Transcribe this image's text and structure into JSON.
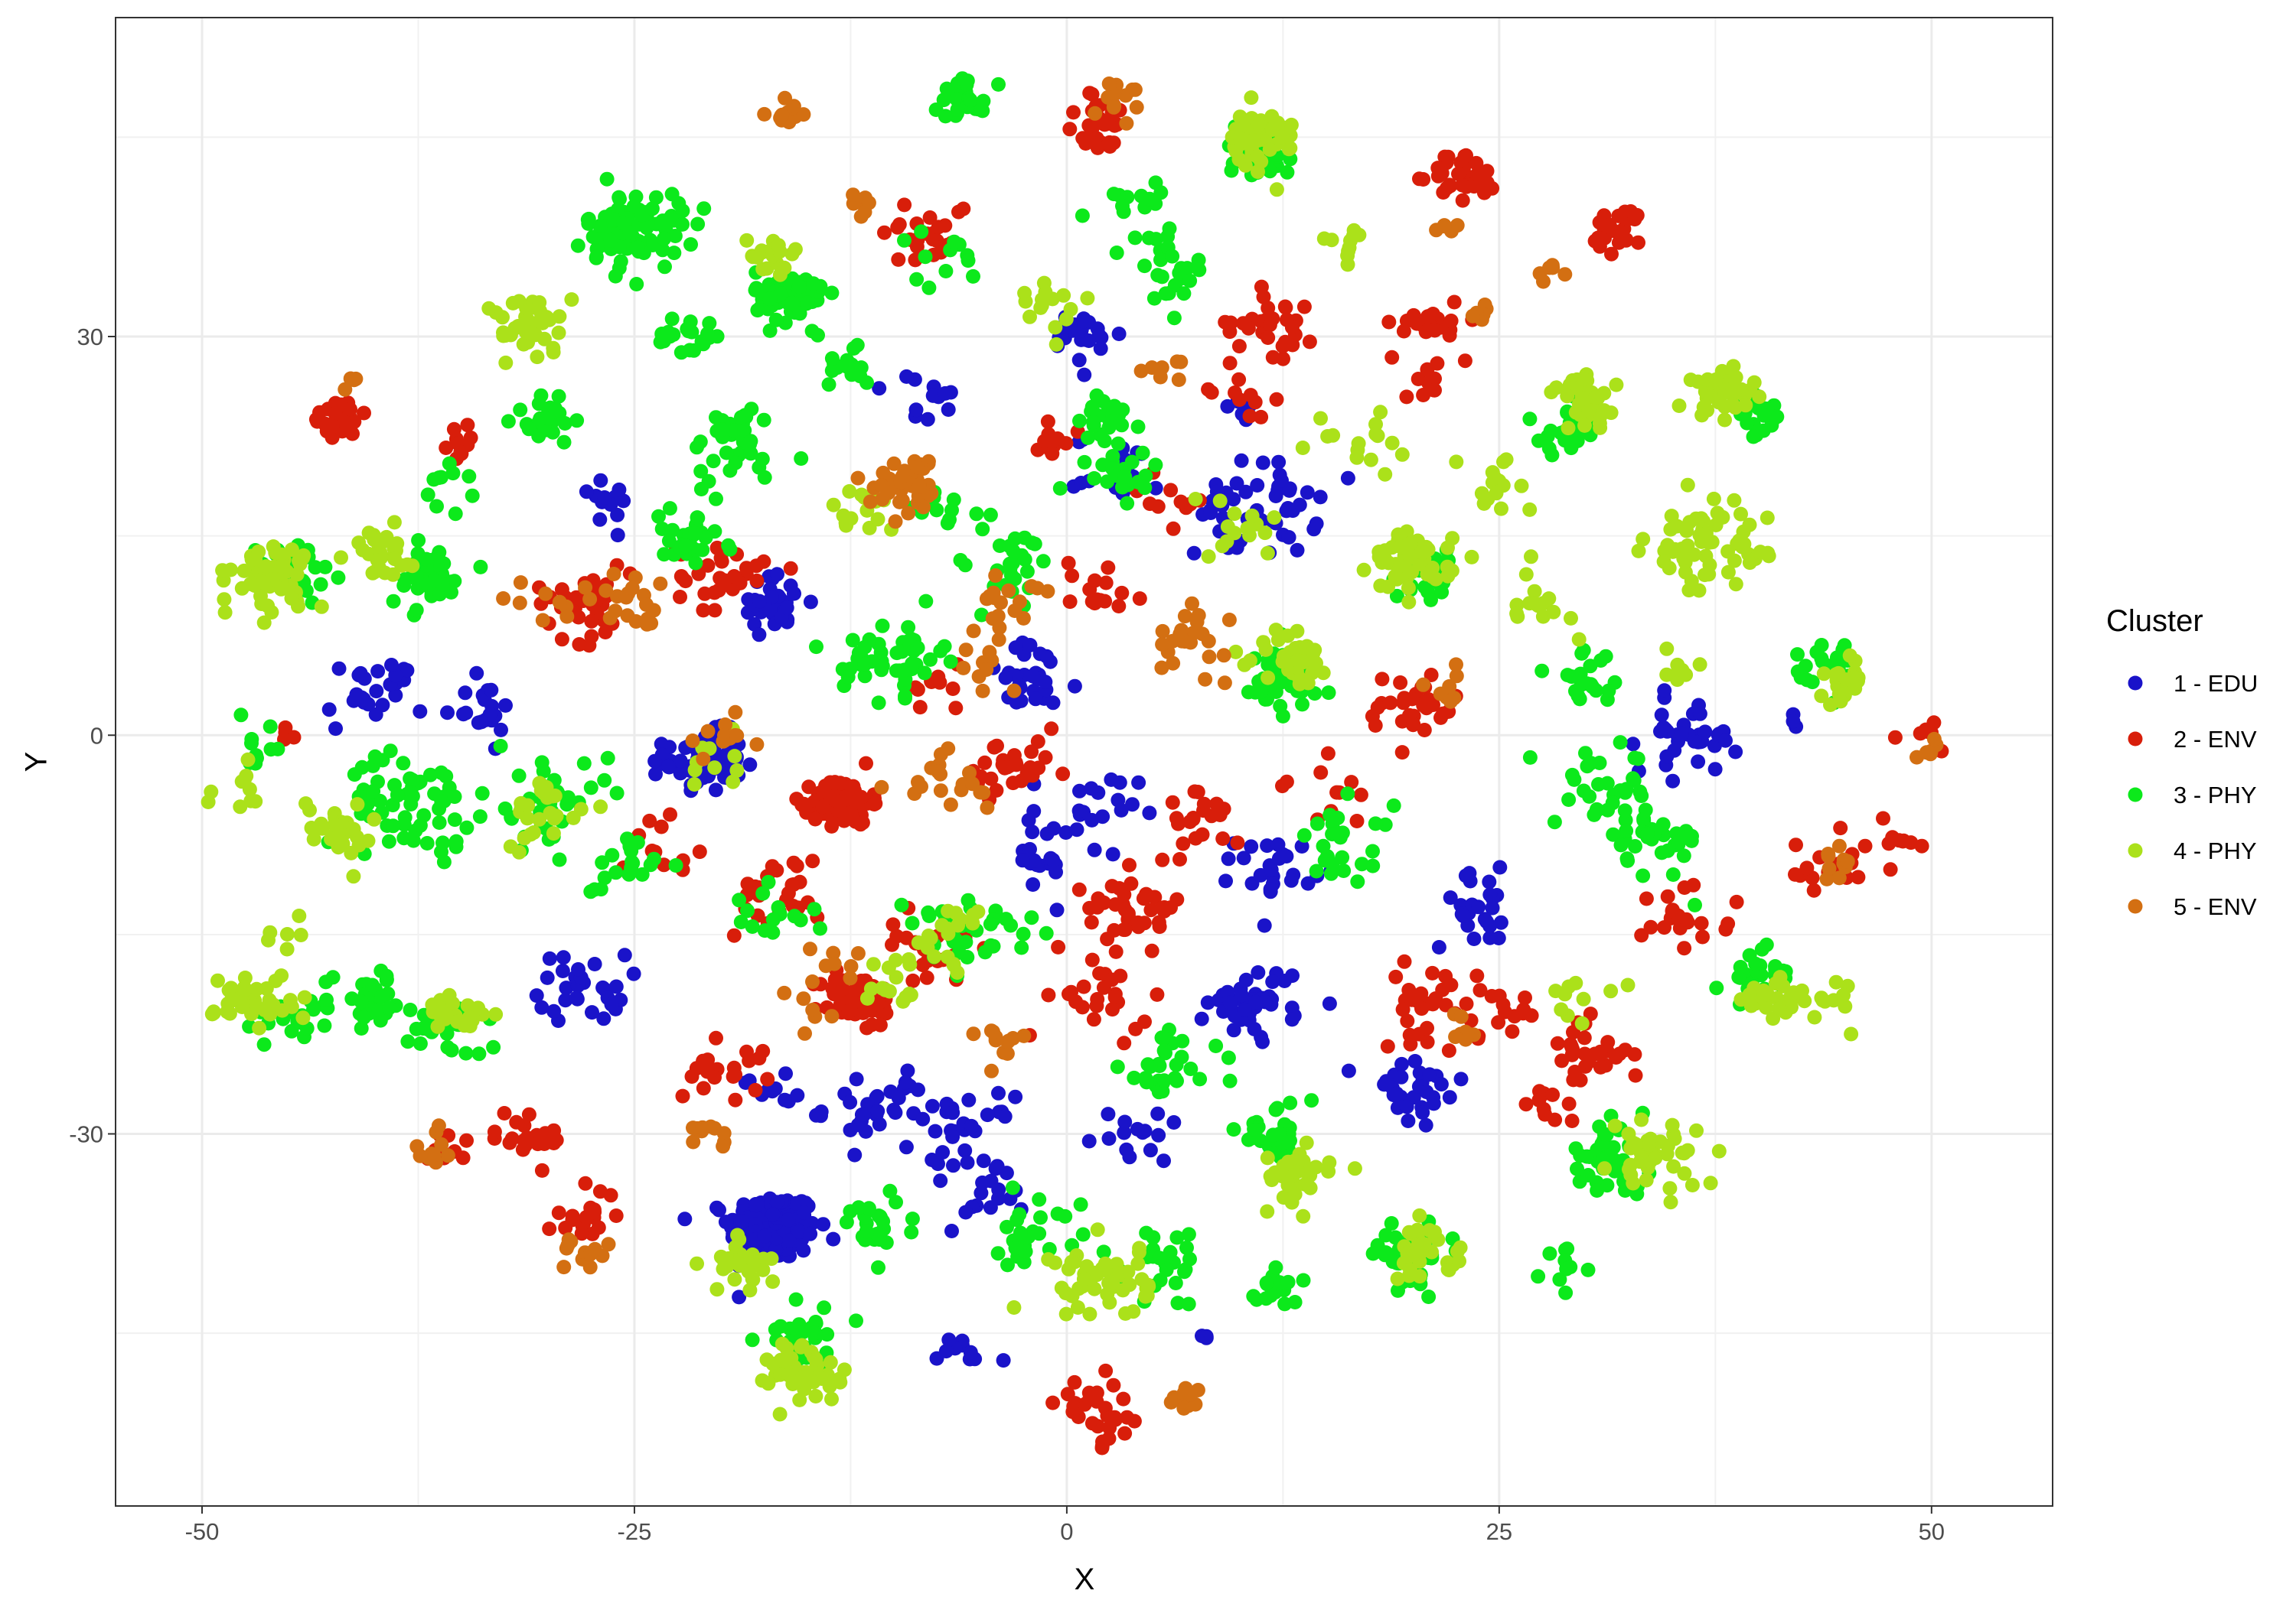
{
  "chart_data": {
    "type": "scatter",
    "title": "",
    "xlabel": "X",
    "ylabel": "Y",
    "xlim": [
      -55,
      57
    ],
    "ylim": [
      -58,
      54
    ],
    "x_ticks": [
      -50,
      -25,
      0,
      25,
      50
    ],
    "x_tick_labels": [
      "-50",
      "-25",
      "0",
      "25",
      "50"
    ],
    "y_ticks": [
      -30,
      0,
      30
    ],
    "y_tick_labels": [
      "-30",
      "0",
      "30"
    ],
    "grid": true,
    "legend": {
      "title": "Cluster",
      "placement": "right"
    },
    "series": [
      {
        "name": "1 - EDU",
        "color": "#1a13c9",
        "clusters": [
          [
            -17,
            -37,
            1.8,
            220
          ],
          [
            -21,
            -2,
            1.6,
            70
          ],
          [
            -17,
            10,
            1.5,
            35
          ],
          [
            -28,
            -19,
            1.8,
            30
          ],
          [
            -40,
            3,
            2.0,
            25
          ],
          [
            -34,
            2,
            1.5,
            20
          ],
          [
            -11,
            -28,
            2.2,
            30
          ],
          [
            -6,
            -30,
            2.0,
            30
          ],
          [
            -2,
            4,
            2.0,
            30
          ],
          [
            1,
            30,
            1.5,
            25
          ],
          [
            3,
            20,
            1.8,
            20
          ],
          [
            11,
            17,
            2.5,
            50
          ],
          [
            11,
            -20,
            2.0,
            40
          ],
          [
            12,
            -10,
            1.6,
            25
          ],
          [
            1,
            -6,
            2.2,
            25
          ],
          [
            -2,
            -10,
            1.5,
            15
          ],
          [
            20,
            -27,
            2.2,
            30
          ],
          [
            24,
            -13,
            2.0,
            25
          ],
          [
            36,
            0,
            2.0,
            35
          ],
          [
            -5,
            -35,
            1.5,
            15
          ],
          [
            -6,
            -47,
            1.5,
            10
          ],
          [
            4,
            -30,
            1.8,
            15
          ],
          [
            -8,
            25,
            1.6,
            12
          ],
          [
            10,
            25,
            1.0,
            8
          ],
          [
            -27,
            18,
            1.6,
            12
          ],
          [
            8,
            -45,
            0.4,
            3
          ],
          [
            -17,
            -27,
            1.2,
            10
          ],
          [
            42,
            1,
            0.5,
            3
          ]
        ]
      },
      {
        "name": "2 - ENV",
        "color": "#d81e0a",
        "clusters": [
          [
            -13,
            -5,
            1.2,
            120
          ],
          [
            -12,
            -20,
            1.6,
            50
          ],
          [
            2,
            46,
            1.6,
            30
          ],
          [
            23,
            42,
            1.4,
            35
          ],
          [
            32,
            38,
            1.2,
            25
          ],
          [
            -42,
            24,
            1.2,
            25
          ],
          [
            12,
            31,
            1.8,
            30
          ],
          [
            -28,
            10,
            2.0,
            40
          ],
          [
            -20,
            12,
            1.8,
            30
          ],
          [
            4,
            -13,
            2.0,
            40
          ],
          [
            21,
            -20,
            2.0,
            30
          ],
          [
            30,
            -24,
            1.8,
            30
          ],
          [
            -28,
            -36,
            1.4,
            20
          ],
          [
            2,
            -51,
            1.8,
            30
          ],
          [
            20,
            2,
            2.0,
            35
          ],
          [
            -8,
            38,
            1.8,
            25
          ],
          [
            21,
            31,
            1.4,
            20
          ],
          [
            2,
            -20,
            2.0,
            25
          ],
          [
            36,
            -13,
            2.0,
            20
          ],
          [
            44,
            -10,
            1.8,
            20
          ],
          [
            -3,
            -3,
            2.0,
            30
          ],
          [
            8,
            -6,
            1.8,
            20
          ],
          [
            -17,
            -12,
            2.0,
            25
          ],
          [
            -31,
            -30,
            1.6,
            20
          ],
          [
            -8,
            -16,
            1.8,
            20
          ],
          [
            25,
            -21,
            1.6,
            15
          ],
          [
            -20,
            -25,
            1.8,
            20
          ],
          [
            -35,
            22,
            0.8,
            10
          ],
          [
            50,
            0,
            1.0,
            8
          ],
          [
            48,
            -8,
            1.0,
            8
          ],
          [
            10,
            26,
            1.2,
            10
          ],
          [
            2,
            11,
            1.8,
            15
          ],
          [
            -36,
            -31,
            1.2,
            10
          ],
          [
            28,
            -28,
            1.0,
            10
          ],
          [
            20,
            27,
            1.4,
            10
          ],
          [
            15,
            -5,
            1.8,
            12
          ],
          [
            -7,
            4,
            1.6,
            10
          ],
          [
            -24,
            -8,
            1.8,
            12
          ],
          [
            6,
            18,
            1.5,
            10
          ],
          [
            -1,
            22,
            1.5,
            10
          ],
          [
            -45,
            0,
            0.6,
            4
          ]
        ]
      },
      {
        "name": "3 - PHY",
        "color": "#0ce91b",
        "clusters": [
          [
            -16,
            33,
            1.4,
            80
          ],
          [
            -25,
            38,
            2.0,
            90
          ],
          [
            -6,
            48,
            1.2,
            25
          ],
          [
            11,
            44,
            1.4,
            40
          ],
          [
            -37,
            12,
            1.6,
            50
          ],
          [
            -38,
            -5,
            2.5,
            60
          ],
          [
            -30,
            24,
            1.4,
            30
          ],
          [
            -22,
            30,
            1.2,
            20
          ],
          [
            -19,
            22,
            2.0,
            40
          ],
          [
            -10,
            6,
            2.0,
            50
          ],
          [
            -22,
            15,
            1.8,
            30
          ],
          [
            -45,
            12,
            1.8,
            30
          ],
          [
            -40,
            -20,
            1.6,
            30
          ],
          [
            -36,
            -22,
            1.6,
            30
          ],
          [
            -30,
            -5,
            2.5,
            40
          ],
          [
            -26,
            -10,
            1.6,
            20
          ],
          [
            -11,
            -37,
            1.8,
            25
          ],
          [
            -15,
            -45,
            1.8,
            30
          ],
          [
            -7,
            -15,
            1.8,
            30
          ],
          [
            -2,
            -37,
            2.0,
            25
          ],
          [
            6,
            -40,
            2.0,
            25
          ],
          [
            12,
            4,
            2.0,
            50
          ],
          [
            6,
            -25,
            2.0,
            30
          ],
          [
            12,
            -30,
            1.6,
            30
          ],
          [
            16,
            -8,
            2.0,
            25
          ],
          [
            12,
            -42,
            1.5,
            15
          ],
          [
            20,
            -39,
            1.5,
            40
          ],
          [
            31,
            -32,
            1.8,
            40
          ],
          [
            29,
            -40,
            1.0,
            10
          ],
          [
            34,
            -8,
            2.0,
            35
          ],
          [
            31,
            -4,
            2.0,
            30
          ],
          [
            30,
            4,
            1.6,
            20
          ],
          [
            40,
            24,
            1.2,
            25
          ],
          [
            29,
            23,
            1.2,
            25
          ],
          [
            40,
            -18,
            1.5,
            25
          ],
          [
            44,
            5,
            1.4,
            25
          ],
          [
            21,
            12,
            1.5,
            25
          ],
          [
            6,
            35,
            1.5,
            25
          ],
          [
            3,
            20,
            1.8,
            25
          ],
          [
            -3,
            13,
            1.8,
            25
          ],
          [
            2,
            24,
            1.2,
            20
          ],
          [
            -13,
            28,
            1.5,
            15
          ],
          [
            -17,
            -14,
            1.5,
            15
          ],
          [
            -44,
            -21,
            1.4,
            20
          ],
          [
            -47,
            -1,
            1.2,
            10
          ],
          [
            -36,
            19,
            1.2,
            10
          ],
          [
            -7,
            17,
            1.6,
            15
          ],
          [
            -3,
            -15,
            1.4,
            10
          ],
          [
            -7,
            36,
            1.5,
            12
          ],
          [
            4,
            40,
            1.6,
            15
          ]
        ]
      },
      {
        "name": "4 - PHY",
        "color": "#abe11a",
        "clusters": [
          [
            11,
            45,
            1.6,
            50
          ],
          [
            -46,
            12,
            1.6,
            60
          ],
          [
            -40,
            14,
            1.5,
            30
          ],
          [
            -42,
            -7,
            1.6,
            30
          ],
          [
            -47,
            -20,
            1.6,
            40
          ],
          [
            -31,
            31,
            1.6,
            40
          ],
          [
            -19,
            -40,
            1.4,
            30
          ],
          [
            -15,
            -48,
            1.6,
            50
          ],
          [
            2,
            -41,
            2.0,
            50
          ],
          [
            20,
            13,
            1.6,
            60
          ],
          [
            30,
            25,
            1.4,
            40
          ],
          [
            38,
            26,
            1.4,
            40
          ],
          [
            37,
            14,
            2.5,
            60
          ],
          [
            45,
            4,
            1.2,
            20
          ],
          [
            34,
            -32,
            1.8,
            40
          ],
          [
            13,
            -33,
            1.6,
            40
          ],
          [
            21,
            -39,
            1.5,
            30
          ],
          [
            13,
            6,
            1.5,
            40
          ],
          [
            -17,
            36,
            1.2,
            20
          ],
          [
            -35,
            -21,
            1.4,
            20
          ],
          [
            -30,
            -6,
            1.8,
            25
          ],
          [
            41,
            -20,
            1.4,
            25
          ],
          [
            -7,
            -15,
            1.8,
            20
          ],
          [
            -10,
            -19,
            1.8,
            15
          ],
          [
            -12,
            17,
            1.4,
            15
          ],
          [
            16,
            37,
            0.9,
            10
          ],
          [
            10,
            16,
            1.8,
            15
          ],
          [
            17,
            22,
            1.8,
            15
          ],
          [
            27,
            10,
            1.6,
            15
          ],
          [
            25,
            19,
            1.4,
            15
          ],
          [
            -1,
            32,
            1.8,
            15
          ],
          [
            -48,
            -4,
            1.2,
            10
          ],
          [
            -20,
            -2,
            1.4,
            10
          ],
          [
            35,
            5,
            1.5,
            10
          ],
          [
            30,
            -19,
            1.5,
            10
          ],
          [
            44,
            -20,
            1.2,
            10
          ],
          [
            -45,
            -15,
            1.0,
            6
          ]
        ]
      },
      {
        "name": "5 - ENV",
        "color": "#d36f12",
        "clusters": [
          [
            -9,
            19,
            1.5,
            45
          ],
          [
            -16,
            47,
            0.9,
            12
          ],
          [
            -12,
            40,
            0.7,
            8
          ],
          [
            3,
            48,
            1.0,
            12
          ],
          [
            7,
            7,
            1.6,
            25
          ],
          [
            -7,
            -3,
            1.8,
            20
          ],
          [
            -3,
            10,
            1.5,
            15
          ],
          [
            -5,
            6,
            1.4,
            12
          ],
          [
            -25,
            10,
            1.8,
            18
          ],
          [
            -30,
            10,
            1.4,
            10
          ],
          [
            7,
            -50,
            0.8,
            10
          ],
          [
            -28,
            -39,
            1.0,
            12
          ],
          [
            -37,
            -31,
            1.0,
            10
          ],
          [
            -21,
            -30,
            1.0,
            10
          ],
          [
            -4,
            -23,
            1.2,
            12
          ],
          [
            -20,
            0,
            1.4,
            12
          ],
          [
            28,
            35,
            0.6,
            6
          ],
          [
            24,
            32,
            0.6,
            6
          ],
          [
            22,
            38,
            0.6,
            5
          ],
          [
            22,
            3,
            1.0,
            8
          ],
          [
            44,
            -10,
            1.2,
            10
          ],
          [
            50,
            -1,
            0.8,
            6
          ],
          [
            6,
            27,
            1.2,
            8
          ],
          [
            -13,
            -17,
            1.2,
            8
          ],
          [
            -41,
            27,
            0.6,
            5
          ],
          [
            23,
            -22,
            1.2,
            8
          ],
          [
            -15,
            -21,
            1.2,
            6
          ]
        ]
      }
    ]
  }
}
